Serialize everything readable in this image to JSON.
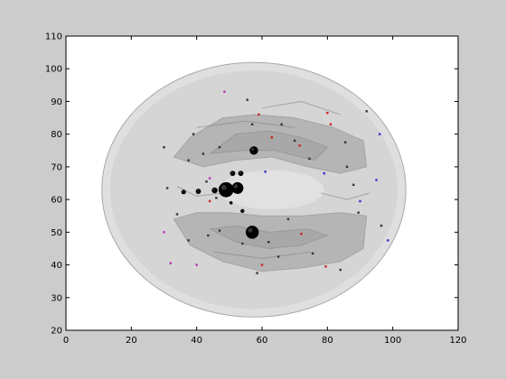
{
  "chart_data": {
    "type": "scatter",
    "title": "",
    "xlabel": "",
    "ylabel": "",
    "xlim": [
      0,
      120
    ],
    "ylim": [
      20,
      110
    ],
    "xticks": [
      0,
      20,
      40,
      60,
      80,
      100,
      120
    ],
    "yticks": [
      20,
      30,
      40,
      50,
      60,
      70,
      80,
      90,
      100,
      110
    ],
    "grid": false,
    "legend": "none",
    "background_overlay": "translucent gray brain surface rendering (axial view)",
    "colors": {
      "figure_bg": "#cccccc",
      "axes_bg": "#ffffff",
      "brain_fill": "#b9b9b9",
      "large_nodes": "#000000",
      "small_red": "#cc2222",
      "small_blue": "#3333cc",
      "small_magenta": "#bb33bb",
      "small_dark": "#333333"
    },
    "large_nodes": [
      {
        "x": 57.5,
        "y": 75.0,
        "r": 1.3
      },
      {
        "x": 49.0,
        "y": 63.0,
        "r": 2.3
      },
      {
        "x": 52.5,
        "y": 63.5,
        "r": 1.8
      },
      {
        "x": 51.0,
        "y": 68.0,
        "r": 0.8
      },
      {
        "x": 53.5,
        "y": 68.0,
        "r": 0.8
      },
      {
        "x": 45.5,
        "y": 62.8,
        "r": 0.9
      },
      {
        "x": 40.5,
        "y": 62.5,
        "r": 0.8
      },
      {
        "x": 36.0,
        "y": 62.3,
        "r": 0.7
      },
      {
        "x": 57.0,
        "y": 50.0,
        "r": 2.0
      },
      {
        "x": 54.0,
        "y": 56.5,
        "r": 0.6
      },
      {
        "x": 50.5,
        "y": 59.0,
        "r": 0.5
      }
    ],
    "small_nodes": [
      {
        "x": 80.0,
        "y": 86.5,
        "c": "red"
      },
      {
        "x": 81.0,
        "y": 83.0,
        "c": "red"
      },
      {
        "x": 71.5,
        "y": 76.5,
        "c": "red"
      },
      {
        "x": 63.0,
        "y": 79.0,
        "c": "red"
      },
      {
        "x": 59.0,
        "y": 86.0,
        "c": "red"
      },
      {
        "x": 47.0,
        "y": 76.0,
        "c": "dark"
      },
      {
        "x": 39.0,
        "y": 80.0,
        "c": "dark"
      },
      {
        "x": 42.0,
        "y": 74.0,
        "c": "dark"
      },
      {
        "x": 48.5,
        "y": 93.0,
        "c": "magenta"
      },
      {
        "x": 96.0,
        "y": 80.0,
        "c": "blue"
      },
      {
        "x": 95.0,
        "y": 66.0,
        "c": "blue"
      },
      {
        "x": 90.0,
        "y": 59.5,
        "c": "blue"
      },
      {
        "x": 98.5,
        "y": 47.5,
        "c": "blue"
      },
      {
        "x": 79.0,
        "y": 68.0,
        "c": "blue"
      },
      {
        "x": 86.0,
        "y": 70.0,
        "c": "dark"
      },
      {
        "x": 88.0,
        "y": 64.5,
        "c": "dark"
      },
      {
        "x": 89.5,
        "y": 56.0,
        "c": "dark"
      },
      {
        "x": 96.5,
        "y": 52.0,
        "c": "dark"
      },
      {
        "x": 72.0,
        "y": 49.5,
        "c": "red"
      },
      {
        "x": 79.5,
        "y": 39.5,
        "c": "red"
      },
      {
        "x": 84.0,
        "y": 38.5,
        "c": "dark"
      },
      {
        "x": 65.0,
        "y": 42.5,
        "c": "dark"
      },
      {
        "x": 60.0,
        "y": 40.0,
        "c": "red"
      },
      {
        "x": 58.5,
        "y": 37.5,
        "c": "dark"
      },
      {
        "x": 40.0,
        "y": 40.0,
        "c": "magenta"
      },
      {
        "x": 32.0,
        "y": 40.5,
        "c": "magenta"
      },
      {
        "x": 43.5,
        "y": 49.0,
        "c": "dark"
      },
      {
        "x": 47.0,
        "y": 50.5,
        "c": "dark"
      },
      {
        "x": 30.0,
        "y": 50.0,
        "c": "magenta"
      },
      {
        "x": 37.5,
        "y": 47.5,
        "c": "dark"
      },
      {
        "x": 34.0,
        "y": 55.5,
        "c": "dark"
      },
      {
        "x": 44.0,
        "y": 59.5,
        "c": "red"
      },
      {
        "x": 46.0,
        "y": 60.5,
        "c": "dark"
      },
      {
        "x": 61.0,
        "y": 68.5,
        "c": "blue"
      },
      {
        "x": 37.5,
        "y": 72.0,
        "c": "dark"
      },
      {
        "x": 44.0,
        "y": 66.5,
        "c": "magenta"
      },
      {
        "x": 43.0,
        "y": 65.5,
        "c": "dark"
      },
      {
        "x": 31.0,
        "y": 63.5,
        "c": "dark"
      },
      {
        "x": 30.0,
        "y": 76.0,
        "c": "dark"
      },
      {
        "x": 57.0,
        "y": 83.0,
        "c": "dark"
      },
      {
        "x": 55.5,
        "y": 90.5,
        "c": "dark"
      },
      {
        "x": 66.0,
        "y": 83.0,
        "c": "dark"
      },
      {
        "x": 70.0,
        "y": 78.0,
        "c": "dark"
      },
      {
        "x": 74.5,
        "y": 72.5,
        "c": "dark"
      },
      {
        "x": 85.5,
        "y": 77.5,
        "c": "dark"
      },
      {
        "x": 92.0,
        "y": 87.0,
        "c": "dark"
      },
      {
        "x": 54.0,
        "y": 46.5,
        "c": "dark"
      },
      {
        "x": 62.0,
        "y": 47.0,
        "c": "dark"
      },
      {
        "x": 68.0,
        "y": 54.0,
        "c": "dark"
      },
      {
        "x": 75.5,
        "y": 43.5,
        "c": "dark"
      }
    ]
  }
}
